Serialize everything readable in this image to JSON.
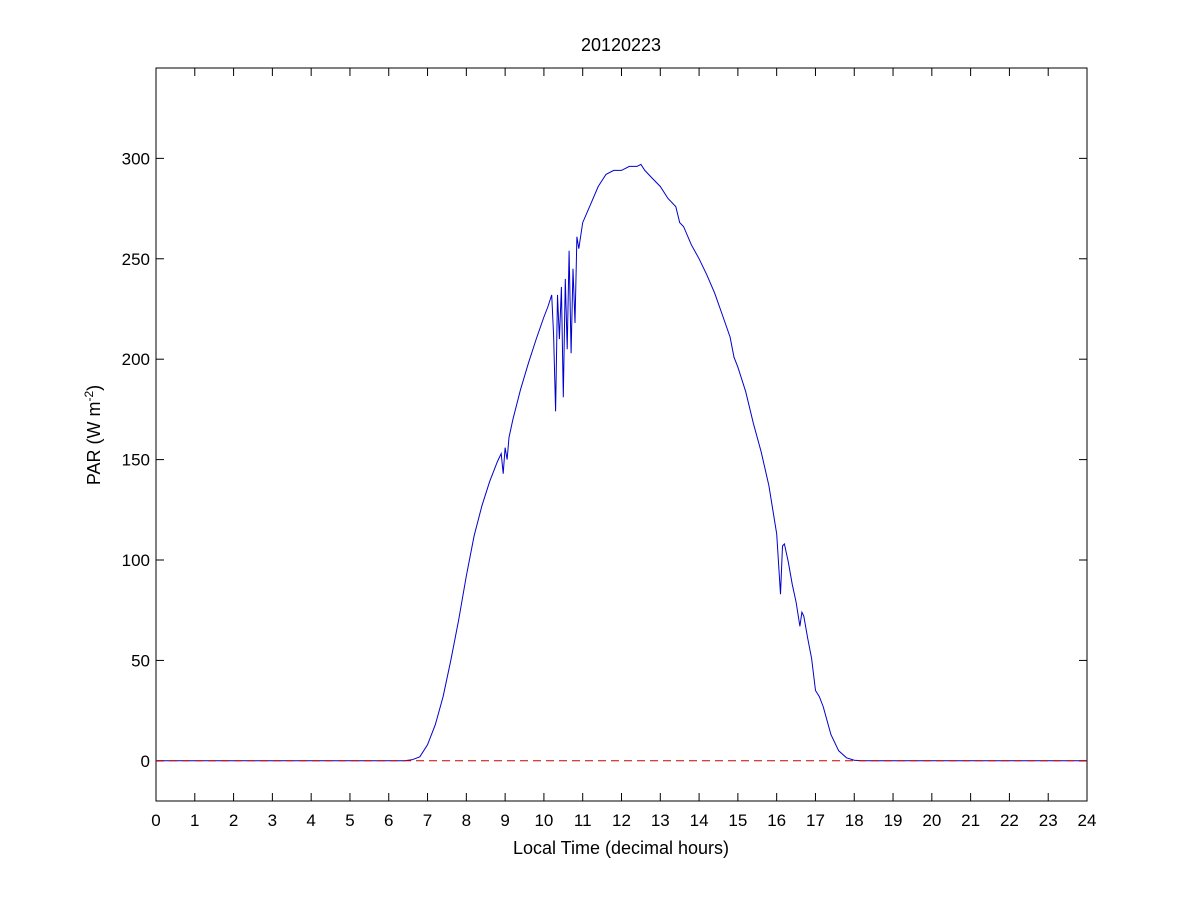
{
  "chart_data": {
    "type": "line",
    "title": "20120223",
    "xlabel": "Local Time (decimal hours)",
    "ylabel": "PAR (W m",
    "ylabel_exponent": "-2",
    "ylabel_suffix": ")",
    "xlim": [
      0,
      24
    ],
    "ylim": [
      -20,
      345
    ],
    "xticks": [
      0,
      1,
      2,
      3,
      4,
      5,
      6,
      7,
      8,
      9,
      10,
      11,
      12,
      13,
      14,
      15,
      16,
      17,
      18,
      19,
      20,
      21,
      22,
      23,
      24
    ],
    "yticks": [
      0,
      50,
      100,
      150,
      200,
      250,
      300
    ],
    "grid": false,
    "legend": "none",
    "series": [
      {
        "color": "#0000cc",
        "style": "solid",
        "x": [
          0,
          6.4,
          6.6,
          6.8,
          7.0,
          7.2,
          7.4,
          7.6,
          7.8,
          8.0,
          8.2,
          8.4,
          8.6,
          8.8,
          8.9,
          8.95,
          9.0,
          9.05,
          9.1,
          9.2,
          9.4,
          9.6,
          9.8,
          10.0,
          10.1,
          10.2,
          10.25,
          10.3,
          10.35,
          10.4,
          10.45,
          10.5,
          10.55,
          10.6,
          10.65,
          10.7,
          10.75,
          10.8,
          10.85,
          10.9,
          11.0,
          11.2,
          11.4,
          11.6,
          11.8,
          12.0,
          12.2,
          12.4,
          12.5,
          12.6,
          12.8,
          13.0,
          13.2,
          13.4,
          13.5,
          13.6,
          13.8,
          14.0,
          14.2,
          14.4,
          14.6,
          14.8,
          14.9,
          15.0,
          15.2,
          15.4,
          15.6,
          15.8,
          16.0,
          16.1,
          16.15,
          16.2,
          16.3,
          16.4,
          16.5,
          16.6,
          16.65,
          16.7,
          16.8,
          16.9,
          17.0,
          17.1,
          17.2,
          17.3,
          17.4,
          17.6,
          17.8,
          18.0,
          18.2,
          18.4,
          19.0,
          24
        ],
        "y": [
          0,
          0,
          0.5,
          2,
          8,
          18,
          32,
          50,
          70,
          92,
          112,
          127,
          139,
          149,
          153,
          143,
          156,
          150,
          161,
          170,
          185,
          198,
          210,
          221,
          226,
          232,
          212,
          174,
          232,
          210,
          236,
          181,
          240,
          205,
          254,
          203,
          245,
          218,
          261,
          255,
          268,
          277,
          286,
          292,
          294,
          294,
          296,
          296,
          297,
          294,
          290,
          286,
          280,
          276,
          268,
          266,
          257,
          250,
          242,
          233,
          222,
          211,
          201,
          196,
          184,
          168,
          154,
          137,
          113,
          83,
          107,
          108,
          99,
          88,
          79,
          67,
          74,
          72,
          61,
          51,
          35,
          32,
          27,
          20,
          13,
          5,
          1.5,
          0.3,
          0,
          0,
          0,
          0
        ]
      },
      {
        "color": "#cc0000",
        "style": "dashed",
        "x": [
          0,
          24
        ],
        "y": [
          0,
          0
        ]
      }
    ]
  }
}
